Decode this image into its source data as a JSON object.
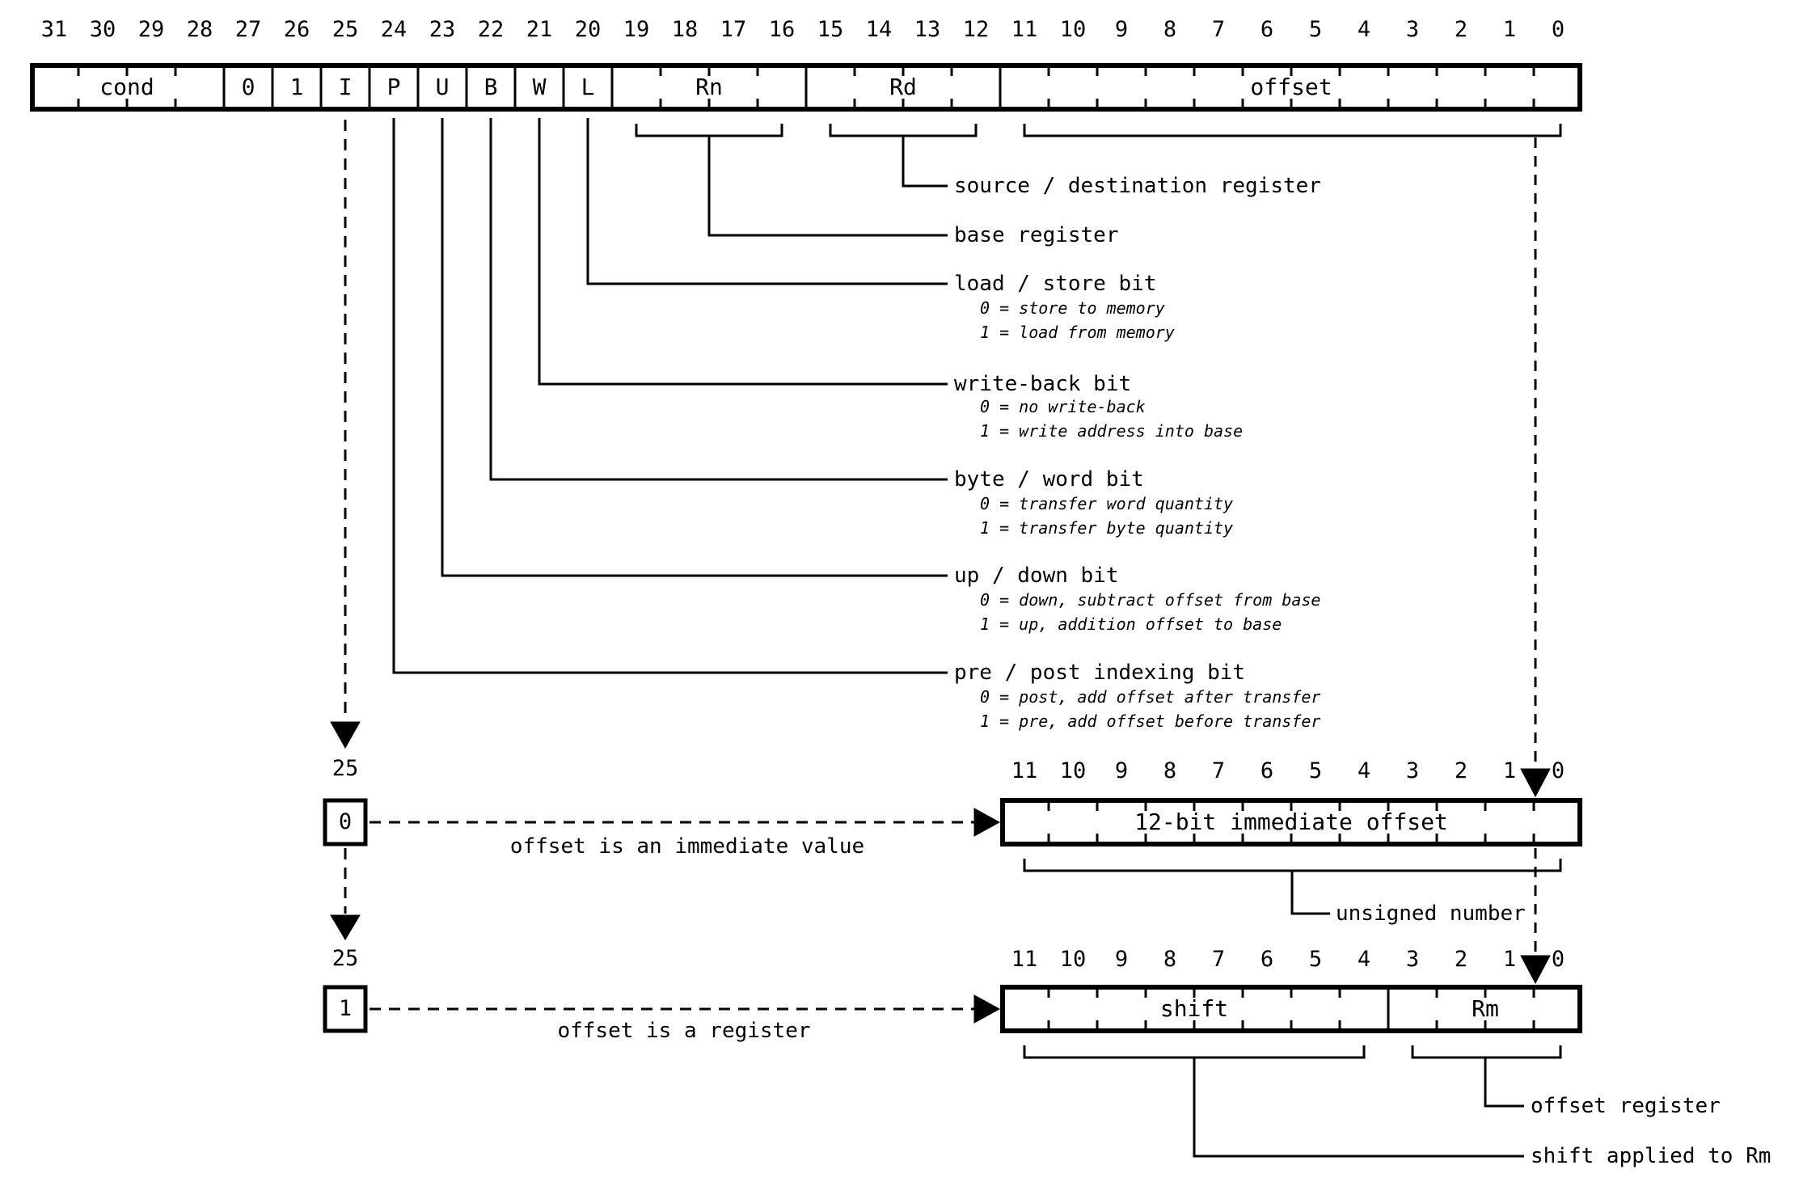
{
  "colors": {
    "ink": "#000000",
    "background": "#ffffff"
  },
  "main_word": {
    "bit_numbers": [
      "31",
      "30",
      "29",
      "28",
      "27",
      "26",
      "25",
      "24",
      "23",
      "22",
      "21",
      "20",
      "19",
      "18",
      "17",
      "16",
      "15",
      "14",
      "13",
      "12",
      "11",
      "10",
      "9",
      "8",
      "7",
      "6",
      "5",
      "4",
      "3",
      "2",
      "1",
      "0"
    ],
    "fields": [
      {
        "label": "cond"
      },
      {
        "label": "0"
      },
      {
        "label": "1"
      },
      {
        "label": "I"
      },
      {
        "label": "P"
      },
      {
        "label": "U"
      },
      {
        "label": "B"
      },
      {
        "label": "W"
      },
      {
        "label": "L"
      },
      {
        "label": "Rn"
      },
      {
        "label": "Rd"
      },
      {
        "label": "offset"
      }
    ]
  },
  "callouts": [
    {
      "label": "source / destination register",
      "notes": []
    },
    {
      "label": "base register",
      "notes": []
    },
    {
      "label": "load / store bit",
      "notes": [
        "0 = store to memory",
        "1 = load from memory"
      ]
    },
    {
      "label": "write-back bit",
      "notes": [
        "0 = no write-back",
        "1 = write address into base"
      ]
    },
    {
      "label": "byte / word bit",
      "notes": [
        "0 = transfer word quantity",
        "1 = transfer byte quantity"
      ]
    },
    {
      "label": "up / down bit",
      "notes": [
        "0 = down, subtract offset from base",
        "1 = up, addition offset to base"
      ]
    },
    {
      "label": "pre / post indexing bit",
      "notes": [
        "0 = post, add offset after transfer",
        "1 = pre, add offset before transfer"
      ]
    }
  ],
  "immediate_variant": {
    "bit_label": "25",
    "bit_value": "0",
    "arrow_caption": "offset is an immediate value",
    "bit_numbers": [
      "11",
      "10",
      "9",
      "8",
      "7",
      "6",
      "5",
      "4",
      "3",
      "2",
      "1",
      "0"
    ],
    "field_label": "12-bit immediate offset",
    "bracket_caption": "unsigned number"
  },
  "register_variant": {
    "bit_label": "25",
    "bit_value": "1",
    "arrow_caption": "offset is a register",
    "bit_numbers": [
      "11",
      "10",
      "9",
      "8",
      "7",
      "6",
      "5",
      "4",
      "3",
      "2",
      "1",
      "0"
    ],
    "fields": [
      {
        "label": "shift"
      },
      {
        "label": "Rm"
      }
    ],
    "callouts": [
      {
        "label": "offset register"
      },
      {
        "label": "shift applied to Rm"
      }
    ]
  }
}
